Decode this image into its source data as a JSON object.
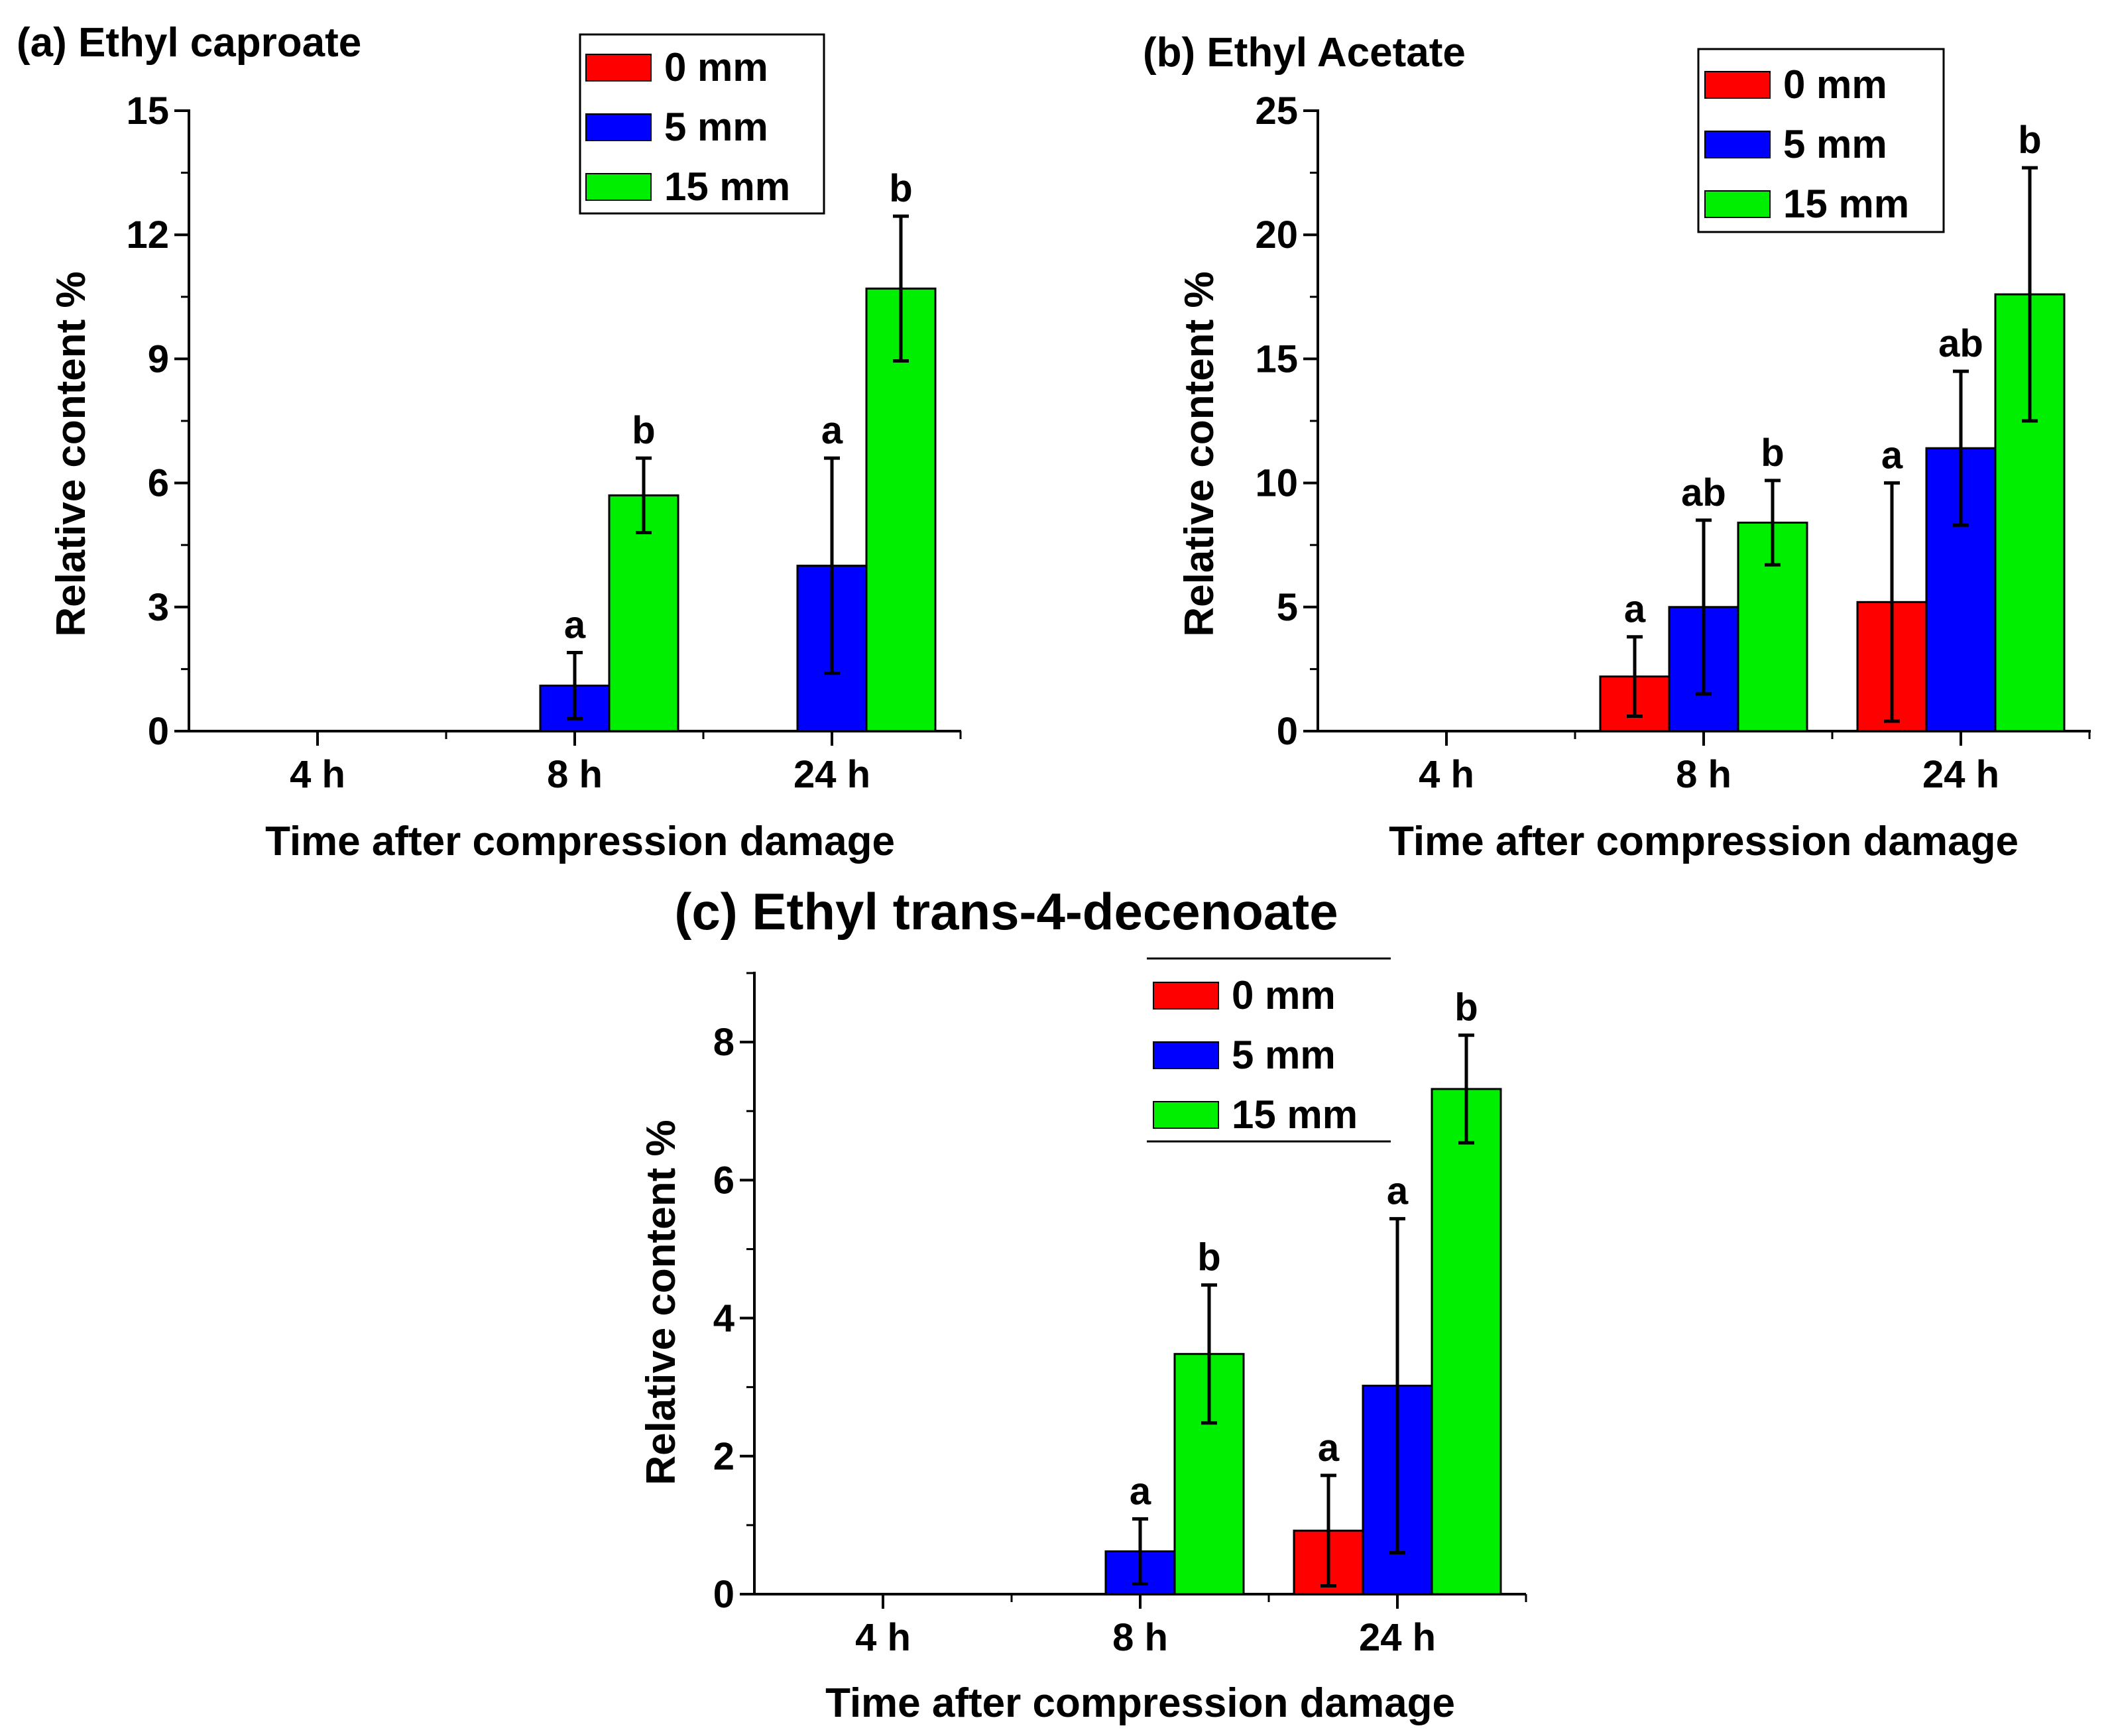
{
  "colors": {
    "0 mm": "#ff0000",
    "5 mm": "#0000ff",
    "15 mm": "#00ee00",
    "axis": "#000000"
  },
  "chart_data": [
    {
      "type": "bar",
      "title": "(a) Ethyl caproate",
      "xlabel": "Time after compression damage",
      "ylabel": "Relative content %",
      "ylim": [
        0,
        15
      ],
      "yticks": [
        "0",
        "3",
        "6",
        "9",
        "12",
        "15"
      ],
      "categories": [
        "4 h",
        "8 h",
        "24 h"
      ],
      "legend": [
        "0 mm",
        "5 mm",
        "15 mm"
      ],
      "legend_position": "top-center",
      "series": [
        {
          "name": "0 mm",
          "values": [
            0,
            0,
            0
          ],
          "errors": [
            0,
            0,
            0
          ],
          "labels": [
            "",
            "",
            ""
          ]
        },
        {
          "name": "5 mm",
          "values": [
            0,
            1.1,
            4.0
          ],
          "errors": [
            0,
            0.8,
            2.6
          ],
          "labels": [
            "",
            "a",
            "a"
          ]
        },
        {
          "name": "15 mm",
          "values": [
            0,
            5.7,
            10.7
          ],
          "errors": [
            0,
            0.9,
            1.75
          ],
          "labels": [
            "",
            "b",
            "b"
          ]
        }
      ]
    },
    {
      "type": "bar",
      "title": "(b) Ethyl Acetate",
      "xlabel": "Time after compression damage",
      "ylabel": "Relative content %",
      "ylim": [
        0,
        25
      ],
      "yticks": [
        "0",
        "5",
        "10",
        "15",
        "20",
        "25"
      ],
      "categories": [
        "4 h",
        "8 h",
        "24 h"
      ],
      "legend": [
        "0 mm",
        "5 mm",
        "15 mm"
      ],
      "legend_position": "top-right",
      "series": [
        {
          "name": "0 mm",
          "values": [
            0,
            2.2,
            5.2
          ],
          "errors": [
            0,
            1.6,
            4.8
          ],
          "labels": [
            "",
            "a",
            "a"
          ]
        },
        {
          "name": "5 mm",
          "values": [
            0,
            5.0,
            11.4
          ],
          "errors": [
            0,
            3.5,
            3.1
          ],
          "labels": [
            "",
            "ab",
            "ab"
          ]
        },
        {
          "name": "15 mm",
          "values": [
            0,
            8.4,
            17.6
          ],
          "errors": [
            0,
            1.7,
            5.1
          ],
          "labels": [
            "",
            "b",
            "b"
          ]
        }
      ]
    },
    {
      "type": "bar",
      "title": "(c) Ethyl trans-4-decenoate",
      "xlabel": "Time after compression damage",
      "ylabel": "Relative content %",
      "ylim": [
        0,
        9
      ],
      "yticks": [
        "0",
        "2",
        "4",
        "6",
        "8"
      ],
      "categories": [
        "4 h",
        "8 h",
        "24 h"
      ],
      "legend": [
        "0 mm",
        "5 mm",
        "15 mm"
      ],
      "legend_position": "top-right",
      "series": [
        {
          "name": "0 mm",
          "values": [
            0,
            0,
            0.92
          ],
          "errors": [
            0,
            0,
            0.8
          ],
          "labels": [
            "",
            "",
            "a"
          ]
        },
        {
          "name": "5 mm",
          "values": [
            0,
            0.62,
            3.02
          ],
          "errors": [
            0,
            0.47,
            2.42
          ],
          "labels": [
            "",
            "a",
            "a"
          ]
        },
        {
          "name": "15 mm",
          "values": [
            0,
            3.48,
            7.32
          ],
          "errors": [
            0,
            1.0,
            0.78
          ],
          "labels": [
            "",
            "b",
            "b"
          ]
        }
      ]
    }
  ]
}
